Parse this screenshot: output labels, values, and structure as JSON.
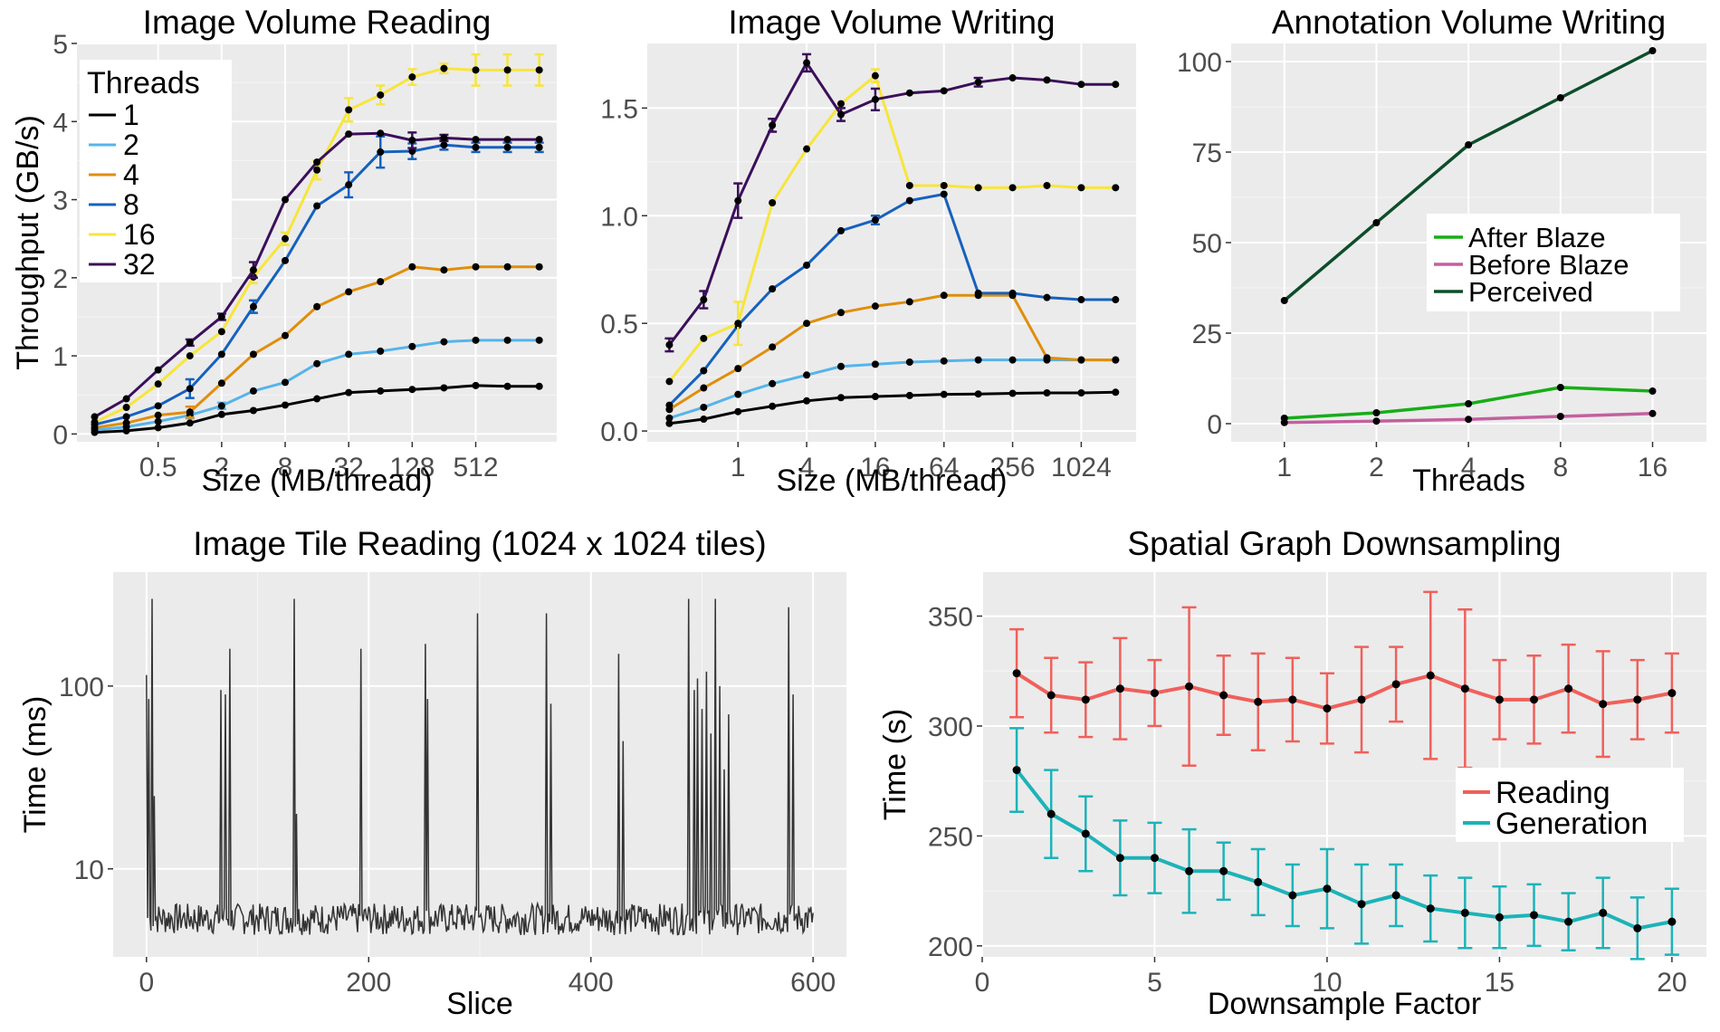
{
  "chart_data": [
    {
      "id": "ivr",
      "type": "line",
      "title": "Image Volume Reading",
      "xlabel": "Size (MB/thread)",
      "ylabel": "Throughput (GB/s)",
      "x_scale": "log2",
      "x": [
        0.125,
        0.25,
        0.5,
        1,
        2,
        4,
        8,
        16,
        32,
        64,
        128,
        256,
        512,
        1024,
        2048
      ],
      "x_ticks": [
        0.5,
        2,
        8,
        32,
        128,
        512
      ],
      "x_tick_labels": [
        "0.5",
        "2",
        "8",
        "32",
        "128",
        "512"
      ],
      "ylim": [
        -0.1,
        5.0
      ],
      "y_ticks": [
        0,
        1,
        2,
        3,
        4,
        5
      ],
      "y_tick_labels": [
        "0",
        "1",
        "2",
        "3",
        "4",
        "5"
      ],
      "legend_title": "Threads",
      "legend_position": "top-left",
      "series": [
        {
          "name": "1",
          "color": "#000000",
          "values": [
            0.02,
            0.04,
            0.08,
            0.14,
            0.25,
            0.3,
            0.37,
            0.45,
            0.53,
            0.55,
            0.57,
            0.59,
            0.62,
            0.61,
            0.61
          ],
          "err": [
            0,
            0,
            0,
            0,
            0,
            0,
            0,
            0,
            0,
            0,
            0,
            0,
            0,
            0,
            0
          ]
        },
        {
          "name": "2",
          "color": "#56B4E9",
          "values": [
            0.05,
            0.09,
            0.16,
            0.24,
            0.36,
            0.55,
            0.66,
            0.9,
            1.02,
            1.06,
            1.12,
            1.18,
            1.2,
            1.2,
            1.2
          ],
          "err": [
            0,
            0,
            0,
            0.04,
            0.04,
            0,
            0,
            0,
            0,
            0,
            0,
            0,
            0,
            0,
            0
          ]
        },
        {
          "name": "4",
          "color": "#E08E0B",
          "values": [
            0.08,
            0.14,
            0.24,
            0.28,
            0.65,
            1.02,
            1.26,
            1.63,
            1.82,
            1.95,
            2.14,
            2.1,
            2.14,
            2.14,
            2.14
          ],
          "err": [
            0,
            0,
            0,
            0.07,
            0,
            0,
            0,
            0,
            0,
            0,
            0,
            0,
            0,
            0,
            0
          ]
        },
        {
          "name": "8",
          "color": "#1661BE",
          "values": [
            0.12,
            0.22,
            0.36,
            0.58,
            1.02,
            1.63,
            2.22,
            2.92,
            3.19,
            3.61,
            3.62,
            3.7,
            3.67,
            3.67,
            3.67
          ],
          "err": [
            0,
            0,
            0,
            0.12,
            0,
            0.08,
            0,
            0,
            0.16,
            0.2,
            0.1,
            0.06,
            0.06,
            0.06,
            0.06
          ]
        },
        {
          "name": "16",
          "color": "#F7E53B",
          "values": [
            0.15,
            0.34,
            0.64,
            1.0,
            1.31,
            2.01,
            2.5,
            3.38,
            4.15,
            4.34,
            4.57,
            4.68,
            4.66,
            4.66,
            4.66
          ],
          "err": [
            0,
            0,
            0,
            0,
            0,
            0.08,
            0.08,
            0.12,
            0.15,
            0.12,
            0.1,
            0.06,
            0.2,
            0.2,
            0.2
          ]
        },
        {
          "name": "32",
          "color": "#3B0F5A",
          "values": [
            0.22,
            0.45,
            0.82,
            1.17,
            1.5,
            2.1,
            3.0,
            3.48,
            3.84,
            3.85,
            3.76,
            3.79,
            3.77,
            3.77,
            3.77
          ],
          "err": [
            0,
            0,
            0,
            0.04,
            0.04,
            0.1,
            0,
            0,
            0,
            0,
            0.1,
            0.04,
            0,
            0,
            0
          ]
        }
      ]
    },
    {
      "id": "ivw",
      "type": "line",
      "title": "Image Volume Writing",
      "xlabel": "Size (MB/thread)",
      "ylabel": "",
      "x_scale": "log2",
      "x": [
        0.25,
        0.5,
        1,
        2,
        4,
        8,
        16,
        32,
        64,
        128,
        256,
        512,
        1024,
        2048
      ],
      "x_ticks": [
        1,
        4,
        16,
        64,
        256,
        1024
      ],
      "x_tick_labels": [
        "1",
        "4",
        "16",
        "64",
        "256",
        "1024"
      ],
      "ylim": [
        -0.05,
        1.8
      ],
      "y_ticks": [
        0,
        0.5,
        1.0,
        1.5
      ],
      "y_tick_labels": [
        "0.0",
        "0.5",
        "1.0",
        "1.5"
      ],
      "series": [
        {
          "name": "1",
          "color": "#000000",
          "values": [
            0.035,
            0.055,
            0.09,
            0.115,
            0.14,
            0.155,
            0.16,
            0.165,
            0.17,
            0.172,
            0.175,
            0.177,
            0.177,
            0.18
          ],
          "err": [
            0,
            0,
            0,
            0,
            0,
            0,
            0,
            0,
            0,
            0,
            0,
            0,
            0,
            0
          ]
        },
        {
          "name": "2",
          "color": "#56B4E9",
          "values": [
            0.06,
            0.11,
            0.17,
            0.22,
            0.26,
            0.3,
            0.31,
            0.32,
            0.325,
            0.33,
            0.33,
            0.33,
            0.33,
            0.33
          ],
          "err": [
            0,
            0,
            0,
            0,
            0,
            0,
            0,
            0,
            0,
            0,
            0,
            0,
            0,
            0
          ]
        },
        {
          "name": "4",
          "color": "#E08E0B",
          "values": [
            0.1,
            0.2,
            0.29,
            0.39,
            0.5,
            0.55,
            0.58,
            0.6,
            0.63,
            0.63,
            0.63,
            0.34,
            0.33,
            0.33
          ],
          "err": [
            0,
            0,
            0,
            0,
            0,
            0,
            0,
            0,
            0,
            0,
            0,
            0,
            0,
            0
          ]
        },
        {
          "name": "8",
          "color": "#1661BE",
          "values": [
            0.12,
            0.28,
            0.49,
            0.66,
            0.77,
            0.93,
            0.98,
            1.07,
            1.1,
            0.64,
            0.64,
            0.62,
            0.61,
            0.61
          ],
          "err": [
            0,
            0,
            0,
            0,
            0,
            0,
            0.02,
            0,
            0,
            0,
            0,
            0,
            0,
            0
          ]
        },
        {
          "name": "16",
          "color": "#F7E53B",
          "values": [
            0.23,
            0.43,
            0.5,
            1.06,
            1.31,
            1.52,
            1.65,
            1.14,
            1.14,
            1.13,
            1.13,
            1.14,
            1.13,
            1.13
          ],
          "err": [
            0,
            0,
            0.1,
            0,
            0,
            0,
            0.03,
            0,
            0,
            0,
            0,
            0,
            0,
            0
          ]
        },
        {
          "name": "32",
          "color": "#3B0F5A",
          "values": [
            0.4,
            0.61,
            1.07,
            1.42,
            1.71,
            1.47,
            1.54,
            1.57,
            1.58,
            1.62,
            1.64,
            1.63,
            1.61,
            1.61
          ],
          "err": [
            0.03,
            0.04,
            0.08,
            0.03,
            0.04,
            0.03,
            0.05,
            0,
            0,
            0.02,
            0,
            0,
            0,
            0
          ]
        }
      ]
    },
    {
      "id": "avw",
      "type": "line",
      "title": "Annotation Volume Writing",
      "xlabel": "Threads",
      "ylabel": "",
      "x_scale": "log2",
      "x": [
        1,
        2,
        4,
        8,
        16
      ],
      "x_ticks": [
        1,
        2,
        4,
        8,
        16
      ],
      "x_tick_labels": [
        "1",
        "2",
        "4",
        "8",
        "16"
      ],
      "ylim": [
        -5,
        105
      ],
      "y_ticks": [
        0,
        25,
        50,
        75,
        100
      ],
      "y_tick_labels": [
        "0",
        "25",
        "50",
        "75",
        "100"
      ],
      "legend_position": "center-right",
      "series": [
        {
          "name": "After Blaze",
          "color": "#17AD17",
          "values": [
            1.5,
            3,
            5.5,
            10,
            9
          ]
        },
        {
          "name": "Before Blaze",
          "color": "#C3609F",
          "values": [
            0.3,
            0.7,
            1.2,
            2,
            2.8
          ]
        },
        {
          "name": "Perceived",
          "color": "#0D4D2B",
          "values": [
            34,
            55.5,
            77,
            90,
            103
          ]
        }
      ]
    },
    {
      "id": "itr",
      "type": "line",
      "title": "Image Tile Reading (1024 x 1024 tiles)",
      "xlabel": "Slice",
      "ylabel": "Time (ms)",
      "y_scale": "log10",
      "xlim": [
        -30,
        630
      ],
      "x_ticks": [
        0,
        200,
        400,
        600
      ],
      "x_tick_labels": [
        "0",
        "200",
        "400",
        "600"
      ],
      "ylim": [
        3.3,
        420
      ],
      "y_ticks": [
        10,
        100
      ],
      "y_tick_labels": [
        "10",
        "100"
      ],
      "line_color": "#333333",
      "baseline_ms": 5.3,
      "spikes": [
        [
          0,
          115
        ],
        [
          2,
          85
        ],
        [
          5,
          300
        ],
        [
          7,
          25
        ],
        [
          67,
          95
        ],
        [
          71,
          90
        ],
        [
          75,
          160
        ],
        [
          133,
          300
        ],
        [
          135,
          20
        ],
        [
          193,
          160
        ],
        [
          251,
          170
        ],
        [
          253,
          85
        ],
        [
          298,
          250
        ],
        [
          360,
          250
        ],
        [
          364,
          80
        ],
        [
          425,
          150
        ],
        [
          429,
          50
        ],
        [
          488,
          300
        ],
        [
          493,
          95
        ],
        [
          496,
          110
        ],
        [
          500,
          75
        ],
        [
          504,
          120
        ],
        [
          508,
          55
        ],
        [
          512,
          300
        ],
        [
          516,
          100
        ],
        [
          520,
          35
        ],
        [
          524,
          70
        ],
        [
          578,
          270
        ],
        [
          582,
          90
        ]
      ]
    },
    {
      "id": "sgd",
      "type": "line",
      "title": "Spatial Graph Downsampling",
      "xlabel": "Downsample Factor",
      "ylabel": "Time (s)",
      "xlim": [
        0,
        21
      ],
      "x_ticks": [
        0,
        5,
        10,
        15,
        20
      ],
      "x_tick_labels": [
        "0",
        "5",
        "10",
        "15",
        "20"
      ],
      "ylim": [
        195,
        370
      ],
      "y_ticks": [
        200,
        250,
        300,
        350
      ],
      "y_tick_labels": [
        "200",
        "250",
        "300",
        "350"
      ],
      "legend_position": "center-right",
      "x": [
        1,
        2,
        3,
        4,
        5,
        6,
        7,
        8,
        9,
        10,
        11,
        12,
        13,
        14,
        15,
        16,
        17,
        18,
        19,
        20
      ],
      "series": [
        {
          "name": "Reading",
          "color": "#F0605B",
          "values": [
            324,
            314,
            312,
            317,
            315,
            318,
            314,
            311,
            312,
            308,
            312,
            319,
            323,
            317,
            312,
            312,
            317,
            310,
            312,
            315
          ],
          "err": [
            20,
            17,
            17,
            23,
            15,
            36,
            18,
            22,
            19,
            16,
            24,
            17,
            38,
            36,
            18,
            20,
            20,
            24,
            18,
            18
          ]
        },
        {
          "name": "Generation",
          "color": "#1CB3B8",
          "values": [
            280,
            260,
            251,
            240,
            240,
            234,
            234,
            229,
            223,
            226,
            219,
            223,
            217,
            215,
            213,
            214,
            211,
            215,
            208,
            211
          ],
          "err": [
            19,
            20,
            17,
            17,
            16,
            19,
            13,
            15,
            14,
            18,
            18,
            14,
            15,
            16,
            14,
            14,
            13,
            16,
            14,
            15
          ]
        }
      ]
    }
  ]
}
